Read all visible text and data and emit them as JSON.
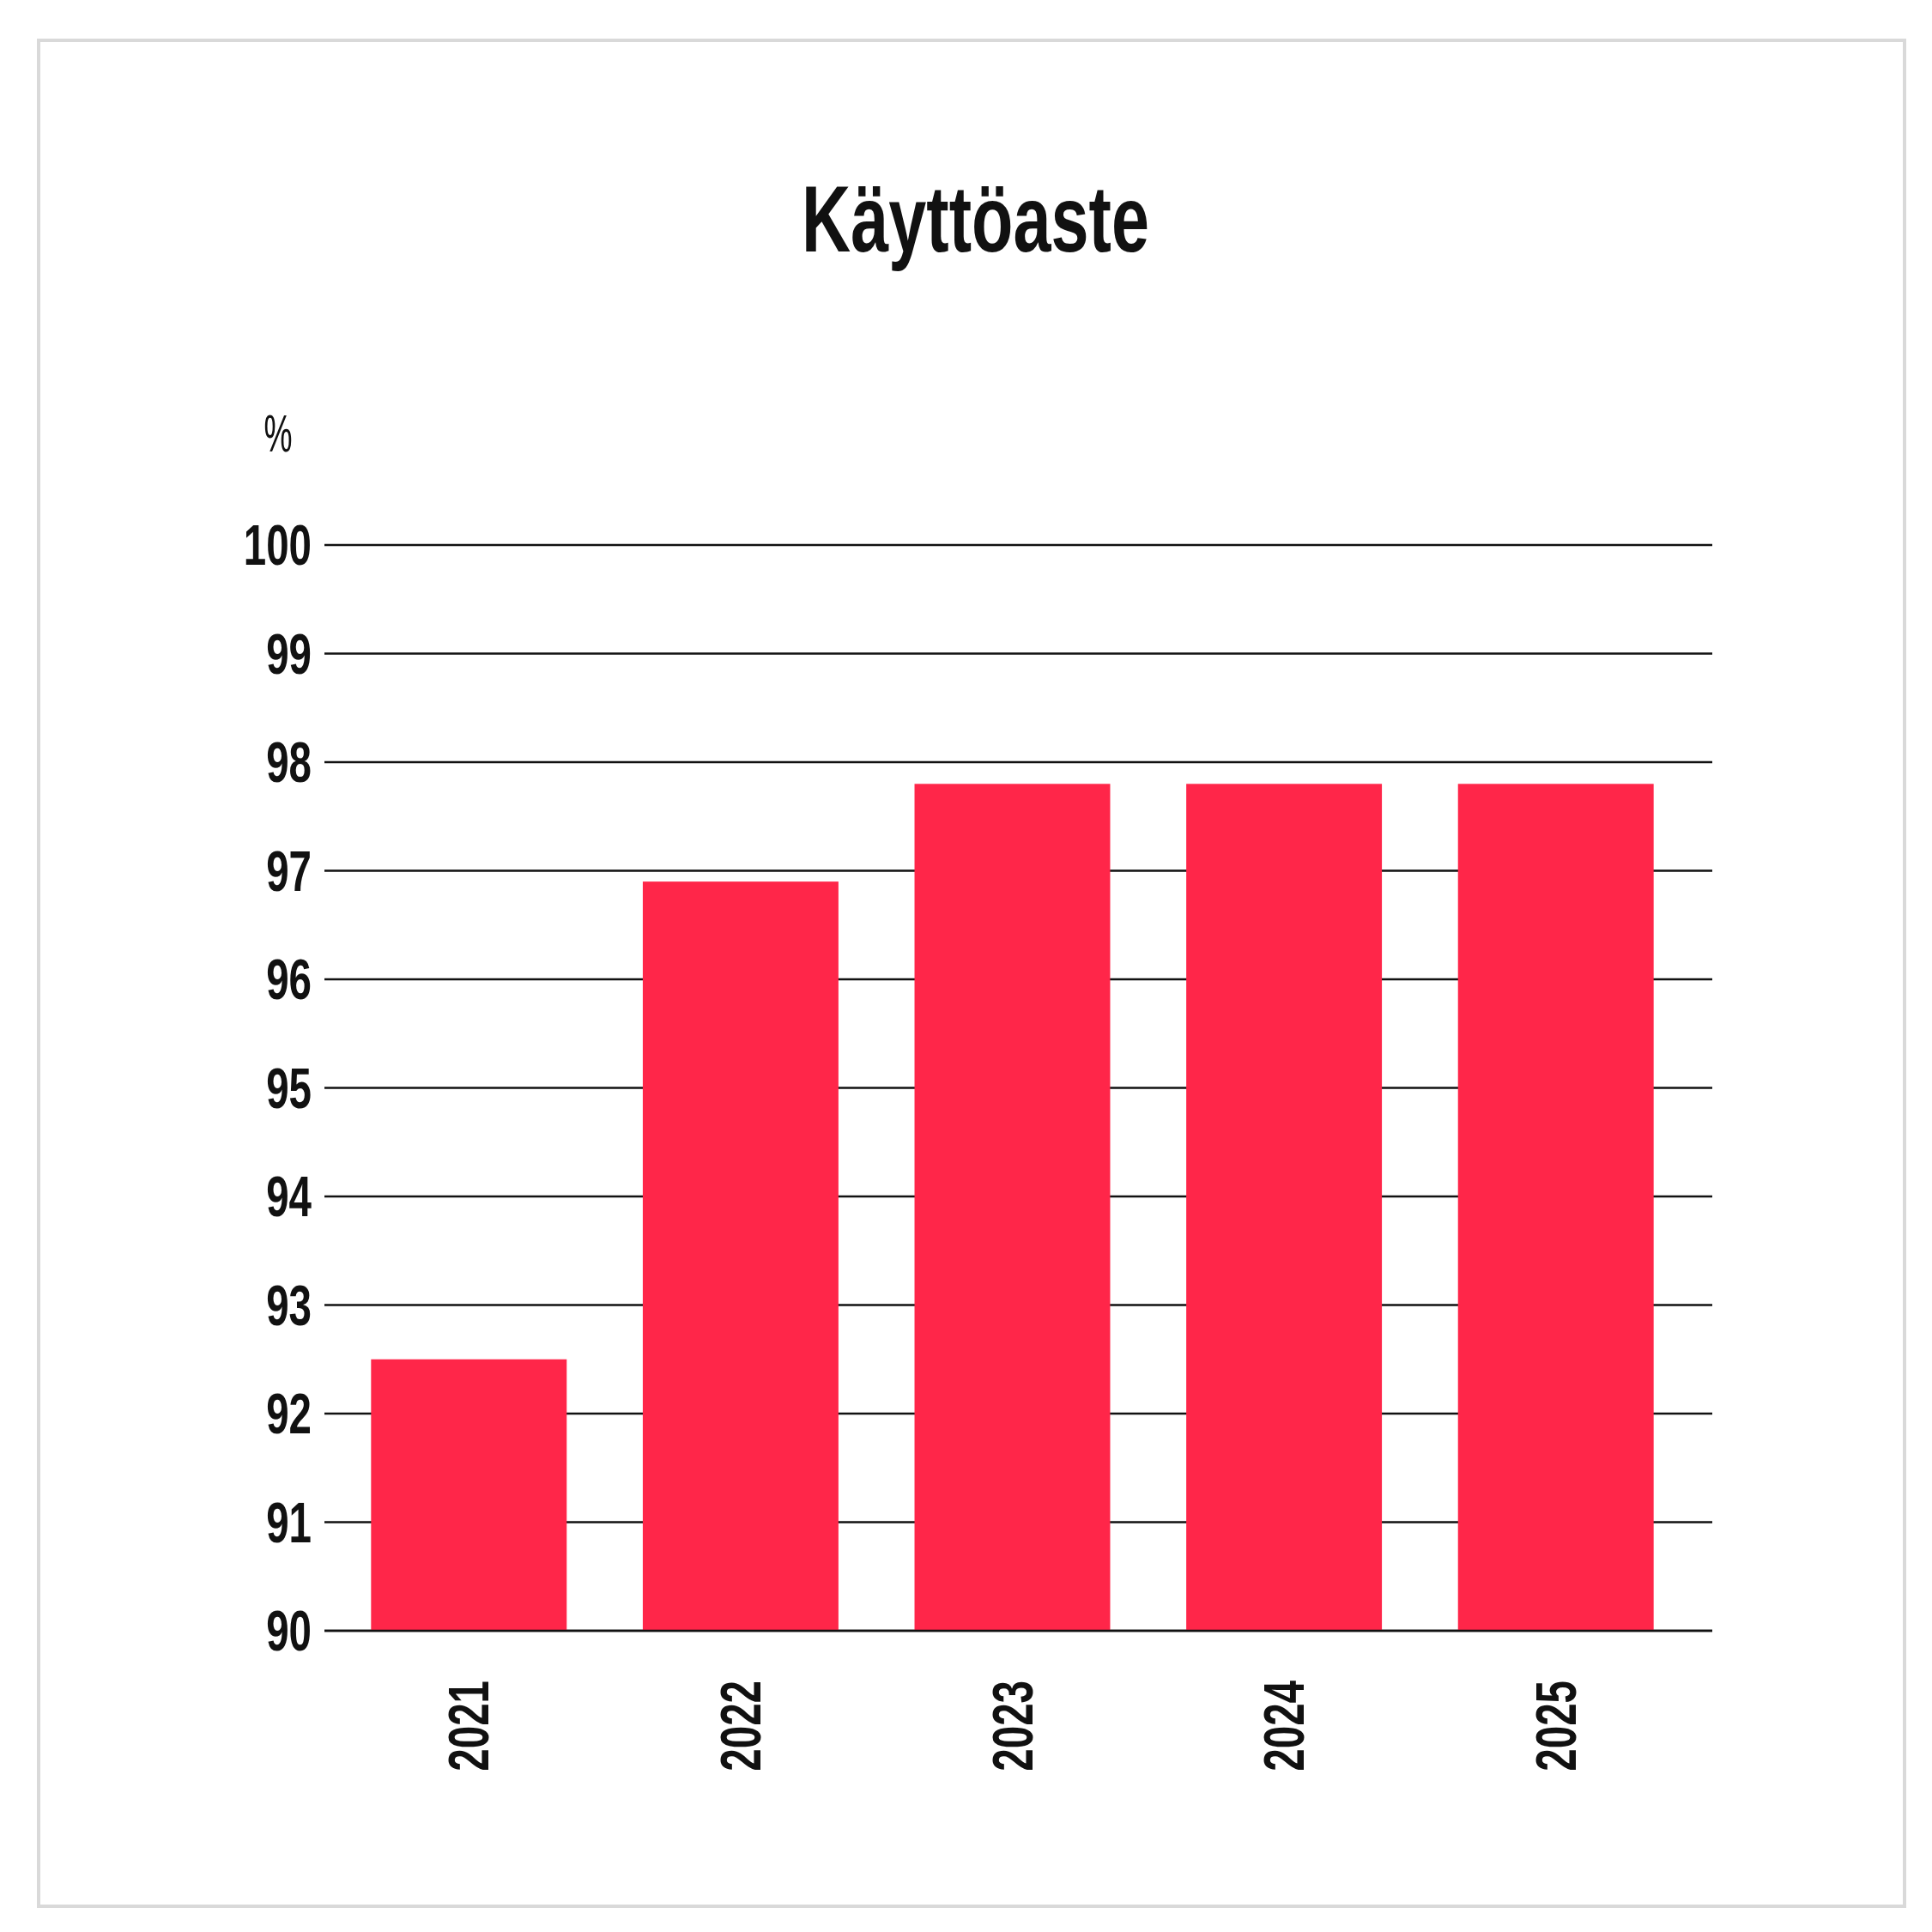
{
  "chart_data": {
    "type": "bar",
    "title": "Käyttöaste",
    "ylabel": "%",
    "categories": [
      "2021",
      "2022",
      "2023",
      "2024",
      "2025"
    ],
    "values": [
      92.5,
      96.9,
      97.8,
      97.8,
      97.8
    ],
    "color": "#ff2649",
    "ylim": [
      90,
      100
    ],
    "yticks": [
      90,
      91,
      92,
      93,
      94,
      95,
      96,
      97,
      98,
      99,
      100
    ],
    "grid": "y"
  }
}
